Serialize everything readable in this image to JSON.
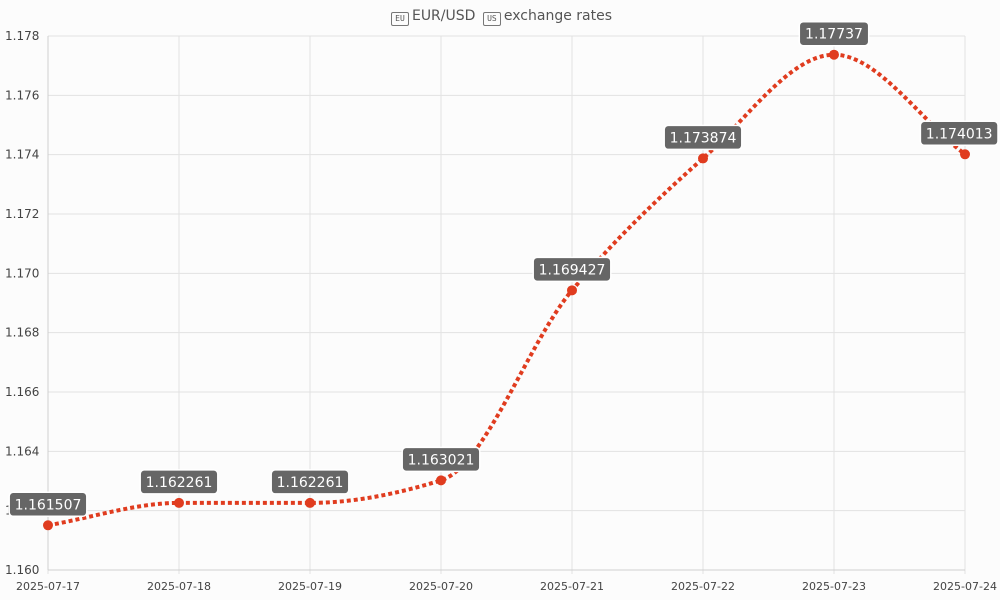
{
  "chart_data": {
    "type": "line",
    "title": {
      "base": "EUR",
      "separator": "/",
      "quote": "USD",
      "suffix": "exchange rates",
      "base_flag_icon": "EU",
      "quote_flag_icon": "US"
    },
    "x": [
      "2025-07-17",
      "2025-07-18",
      "2025-07-19",
      "2025-07-20",
      "2025-07-21",
      "2025-07-22",
      "2025-07-23",
      "2025-07-24"
    ],
    "series": [
      {
        "values": [
          1.161507,
          1.162261,
          1.162261,
          1.163021,
          1.169427,
          1.173874,
          1.17737,
          1.174013
        ],
        "labels": [
          "1.161507",
          "1.162261",
          "1.162261",
          "1.163021",
          "1.169427",
          "1.173874",
          "1.17737",
          "1.174013"
        ],
        "color": "#e03c1f",
        "line_style": "dotted"
      }
    ],
    "yticks": [
      "1.160",
      "1.162",
      "1.164",
      "1.166",
      "1.168",
      "1.170",
      "1.172",
      "1.174",
      "1.176",
      "1.178"
    ],
    "ylim": [
      1.16,
      1.178
    ],
    "grid": true,
    "label_box_color": "#666666"
  }
}
